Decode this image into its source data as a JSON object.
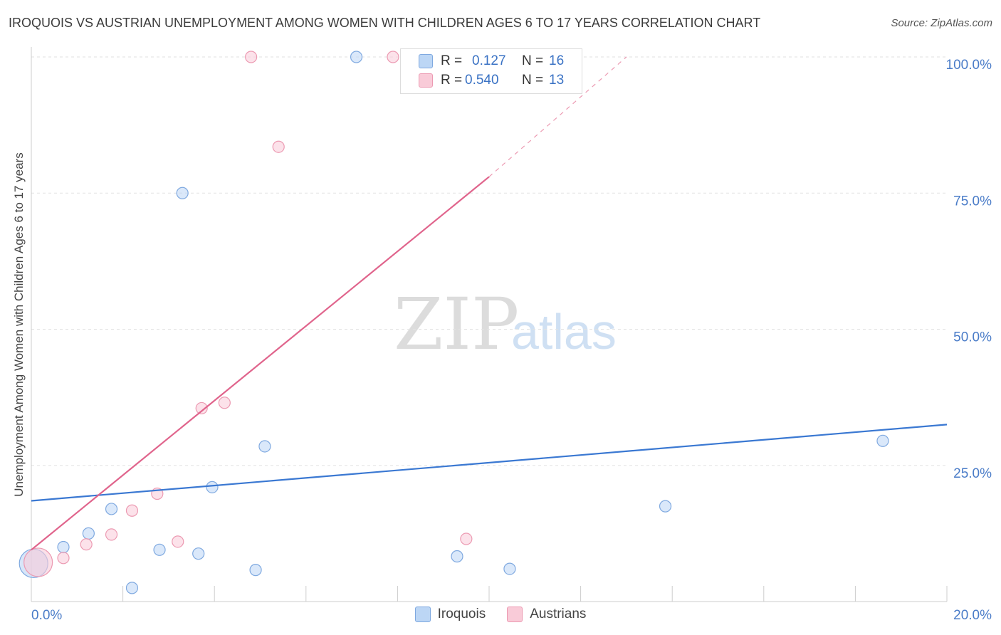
{
  "chart_data": {
    "type": "scatter",
    "title": "IROQUOIS VS AUSTRIAN UNEMPLOYMENT AMONG WOMEN WITH CHILDREN AGES 6 TO 17 YEARS CORRELATION CHART",
    "source": "Source: ZipAtlas.com",
    "ylabel": "Unemployment Among Women with Children Ages 6 to 17 years",
    "xlabel": "",
    "xlim": [
      0,
      20
    ],
    "ylim": [
      0,
      100
    ],
    "x_ticks": [
      "0.0%",
      "20.0%"
    ],
    "y_ticks": [
      {
        "value": 25,
        "label": "25.0%"
      },
      {
        "value": 50,
        "label": "50.0%"
      },
      {
        "value": 75,
        "label": "75.0%"
      },
      {
        "value": 100,
        "label": "100.0%"
      }
    ],
    "watermark": {
      "zip": "ZIP",
      "atlas": "atlas"
    },
    "series": [
      {
        "name": "Iroquois",
        "color": "#3a78d2",
        "fill": "#bcd6f5",
        "stroke": "#7fa9e0",
        "r": "0.127",
        "n": "16",
        "points": [
          {
            "x": 0.05,
            "y": 7.0,
            "big": true
          },
          {
            "x": 0.7,
            "y": 10.0
          },
          {
            "x": 1.25,
            "y": 12.5
          },
          {
            "x": 1.75,
            "y": 17.0
          },
          {
            "x": 2.2,
            "y": 2.5
          },
          {
            "x": 2.8,
            "y": 9.5
          },
          {
            "x": 3.3,
            "y": 75.0
          },
          {
            "x": 3.65,
            "y": 8.8
          },
          {
            "x": 3.95,
            "y": 21.0
          },
          {
            "x": 4.9,
            "y": 5.8
          },
          {
            "x": 5.1,
            "y": 28.5
          },
          {
            "x": 7.1,
            "y": 100.0
          },
          {
            "x": 9.3,
            "y": 8.3
          },
          {
            "x": 10.45,
            "y": 6.0
          },
          {
            "x": 13.85,
            "y": 17.5
          },
          {
            "x": 18.6,
            "y": 29.5
          }
        ],
        "trend": {
          "x0": 0,
          "y0": 18.5,
          "x1": 20,
          "y1": 32.5
        }
      },
      {
        "name": "Austrians",
        "color": "#e0648c",
        "fill": "#f9cbd8",
        "stroke": "#ec9ab2",
        "r": "0.540",
        "n": "13",
        "points": [
          {
            "x": 0.15,
            "y": 7.2,
            "big": true
          },
          {
            "x": 0.7,
            "y": 8.0
          },
          {
            "x": 1.2,
            "y": 10.5
          },
          {
            "x": 1.75,
            "y": 12.3
          },
          {
            "x": 2.2,
            "y": 16.7
          },
          {
            "x": 2.75,
            "y": 19.8
          },
          {
            "x": 3.2,
            "y": 11.0
          },
          {
            "x": 3.72,
            "y": 35.5
          },
          {
            "x": 4.22,
            "y": 36.5
          },
          {
            "x": 4.8,
            "y": 100.0
          },
          {
            "x": 5.4,
            "y": 83.5
          },
          {
            "x": 7.9,
            "y": 100.0
          },
          {
            "x": 9.5,
            "y": 11.5
          }
        ],
        "trend": {
          "x0": 0,
          "y0": 9.5,
          "x1": 10.0,
          "y1": 78.0
        },
        "trend_dashed": {
          "x0": 10.0,
          "y0": 78.0,
          "x1": 13.0,
          "y1": 100.0
        }
      }
    ]
  },
  "legend_labels": {
    "r_label": "R =",
    "n_label": "N ="
  }
}
